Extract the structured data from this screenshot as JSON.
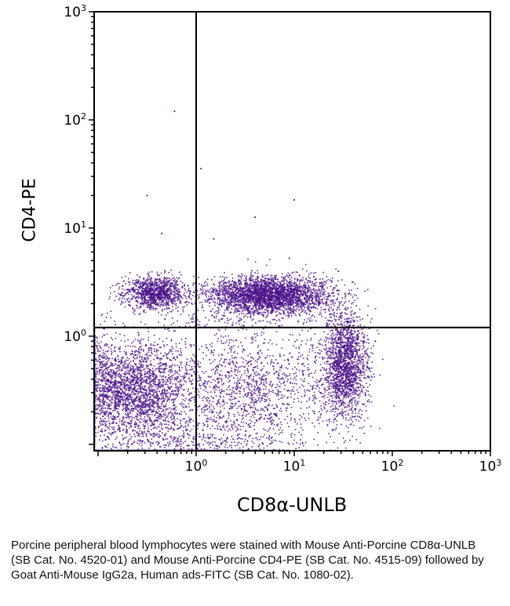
{
  "figure": {
    "background": "#ffffff",
    "dot_color": "#4a1088",
    "axis_color": "#000000"
  },
  "chart_data": {
    "type": "scatter",
    "subtype": "flow-cytometry-dot-plot",
    "title": "",
    "xlabel": "CD8α-UNLB",
    "ylabel": "CD4-PE",
    "x_scale": "log10",
    "y_scale": "log10",
    "xlim_log": [
      -1.04,
      3
    ],
    "ylim_log": [
      -1.06,
      3
    ],
    "x_tick_exponents": [
      0,
      1,
      2,
      3
    ],
    "y_tick_exponents": [
      0,
      1,
      2,
      3
    ],
    "grid": false,
    "legend": "none",
    "quadrant_gate": {
      "x_log": 0.0,
      "y_log": 0.08
    },
    "clusters": [
      {
        "name": "cd4-single-positive",
        "cx": -0.42,
        "cy": 0.4,
        "sx": 0.16,
        "sy": 0.075,
        "n": 1100
      },
      {
        "name": "cd4-cd8-double-positive",
        "cx": 0.72,
        "cy": 0.38,
        "sx": 0.3,
        "sy": 0.085,
        "n": 2800
      },
      {
        "name": "upper-right-sparse",
        "cx": 1.25,
        "cy": 0.33,
        "sx": 0.14,
        "sy": 0.1,
        "n": 130
      },
      {
        "name": "above-gate-sparse-band",
        "cx": 0.3,
        "cy": 0.15,
        "sx": 0.55,
        "sy": 0.1,
        "n": 120
      },
      {
        "name": "double-negative",
        "cx": -0.65,
        "cy": -0.5,
        "sx": 0.3,
        "sy": 0.22,
        "n": 2400
      },
      {
        "name": "lower-middle-scatter",
        "cx": 0.55,
        "cy": -0.5,
        "sx": 0.45,
        "sy": 0.28,
        "n": 1500
      },
      {
        "name": "cd8-single-positive",
        "cx": 1.52,
        "cy": -0.26,
        "sx": 0.11,
        "sy": 0.24,
        "n": 1700
      },
      {
        "name": "bottom-edge-pileup",
        "cx": -0.2,
        "cy": -1.02,
        "sx": 0.55,
        "sy": 0.15,
        "n": 600
      },
      {
        "name": "left-edge-pileup",
        "cx": -1.06,
        "cy": -0.45,
        "sx": 0.12,
        "sy": 0.25,
        "n": 300
      }
    ],
    "singles_log": [
      [
        -0.22,
        2.08
      ],
      [
        1.0,
        1.26
      ],
      [
        0.18,
        0.9
      ],
      [
        -0.35,
        0.95
      ],
      [
        0.95,
        0.72
      ],
      [
        1.45,
        0.6
      ],
      [
        -0.5,
        1.3
      ],
      [
        0.6,
        1.1
      ],
      [
        0.05,
        1.55
      ],
      [
        1.2,
        0.55
      ]
    ]
  },
  "caption": {
    "text": "Porcine peripheral blood lymphocytes were stained with Mouse Anti-Porcine CD8α-UNLB (SB Cat. No. 4520-01) and Mouse Anti-Porcine CD4-PE (SB Cat. No. 4515-09) followed by Goat Anti-Mouse IgG2a, Human ads-FITC (SB Cat. No. 1080-02)."
  }
}
